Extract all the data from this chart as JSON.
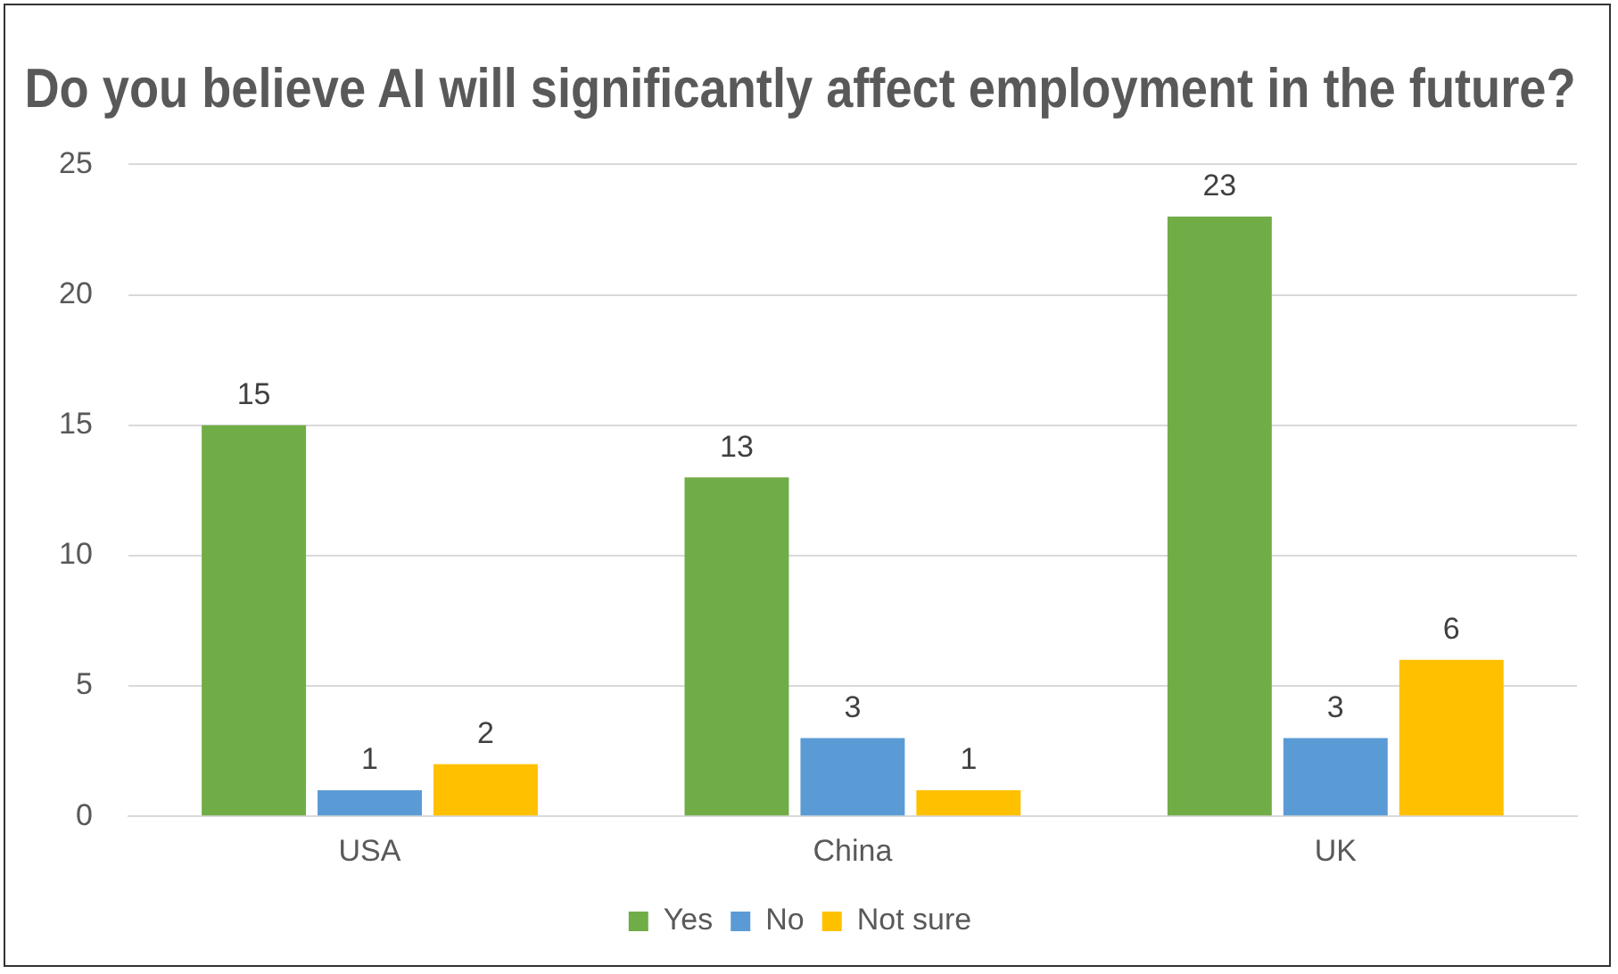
{
  "chart_data": {
    "type": "bar",
    "title": "Do you believe AI will significantly affect employment in the future?",
    "categories": [
      "USA",
      "China",
      "UK"
    ],
    "series": [
      {
        "name": "Yes",
        "color": "#70ad47",
        "values": [
          15,
          13,
          23
        ]
      },
      {
        "name": "No",
        "color": "#5b9bd5",
        "values": [
          1,
          3,
          3
        ]
      },
      {
        "name": "Not sure",
        "color": "#ffc000",
        "values": [
          2,
          1,
          6
        ]
      }
    ],
    "ylim": [
      0,
      25
    ],
    "yticks": [
      0,
      5,
      10,
      15,
      20,
      25
    ],
    "grid": "y",
    "legend": "bottom",
    "data_labels": true
  }
}
